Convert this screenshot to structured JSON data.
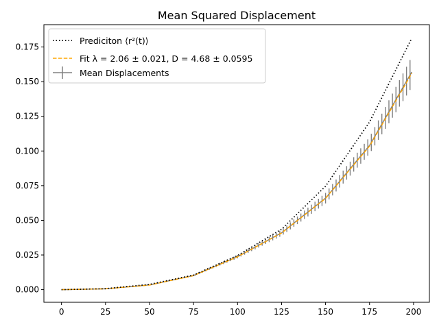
{
  "chart_data": {
    "type": "line",
    "title": "Mean Squared Displacement",
    "xlabel": "",
    "ylabel": "",
    "xlim": [
      -10,
      209
    ],
    "ylim": [
      -0.0091,
      0.1911
    ],
    "x_ticks": [
      0,
      25,
      50,
      75,
      100,
      125,
      150,
      175,
      200
    ],
    "y_ticks": [
      0.0,
      0.025,
      0.05,
      0.075,
      0.1,
      0.125,
      0.15,
      0.175
    ],
    "x_tick_labels": [
      "0",
      "25",
      "50",
      "75",
      "100",
      "125",
      "150",
      "175",
      "200"
    ],
    "y_tick_labels": [
      "0.000",
      "0.025",
      "0.050",
      "0.075",
      "0.100",
      "0.125",
      "0.150",
      "0.175"
    ],
    "grid": false,
    "legend_position": "top-left",
    "series": [
      {
        "name": "Prediciton ⟨r²(t)⟩",
        "style": "dotted",
        "color": "#000000",
        "x": [
          0,
          25,
          50,
          75,
          100,
          125,
          150,
          175,
          199
        ],
        "y": [
          0.0,
          0.0007,
          0.0038,
          0.0105,
          0.0246,
          0.0436,
          0.0746,
          0.1209,
          0.1814
        ]
      },
      {
        "name": "Fit λ = 2.06 ± 0.021, D = 4.68 ± 0.0595",
        "style": "dashed",
        "color": "#ffa500",
        "x": [
          0,
          25,
          50,
          75,
          100,
          125,
          150,
          175,
          199
        ],
        "y": [
          0.0,
          0.0006,
          0.0033,
          0.0101,
          0.0237,
          0.0408,
          0.0658,
          0.1035,
          0.156
        ]
      },
      {
        "name": "Mean Displacements",
        "style": "errorbar",
        "color": "#808080",
        "x": [
          0,
          25,
          50,
          75,
          100,
          125,
          150,
          175,
          199
        ],
        "y": [
          0.0,
          0.0006,
          0.0034,
          0.0102,
          0.0238,
          0.041,
          0.066,
          0.104,
          0.157
        ],
        "yerr": [
          0.0,
          0.0001,
          0.0002,
          0.0006,
          0.0012,
          0.0022,
          0.0038,
          0.006,
          0.011
        ]
      }
    ]
  }
}
